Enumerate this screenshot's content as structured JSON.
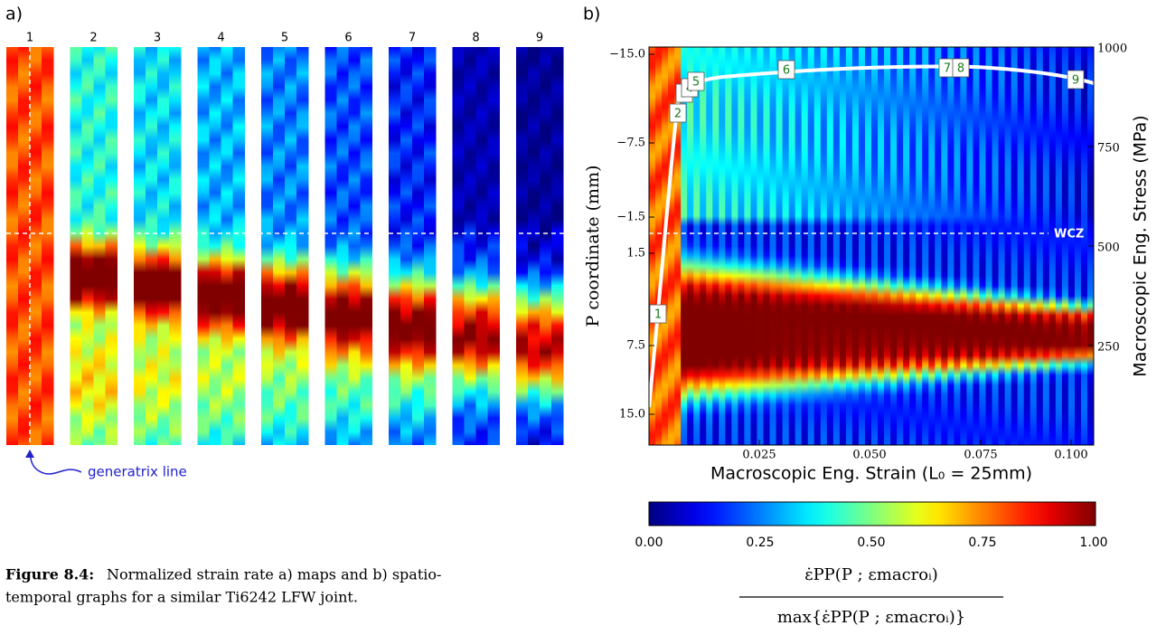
{
  "panel_a": {
    "label": "a)",
    "map_labels": [
      "1",
      "2",
      "3",
      "4",
      "5",
      "6",
      "7",
      "8",
      "9"
    ],
    "annotation": "generatrix line"
  },
  "panel_b": {
    "label": "b)",
    "y_label": "P coordinate (mm)",
    "y2_label": "Macroscopic Eng. Stress (MPa)",
    "x_label": "Macroscopic Eng. Strain (L₀ = 25mm)",
    "y_ticks": [
      "−15.0",
      "−7.5",
      "−1.5",
      "1.5",
      "7.5",
      "15.0"
    ],
    "y2_ticks": [
      "1000",
      "750",
      "500",
      "250"
    ],
    "x_ticks": [
      "0.025",
      "0.050",
      "0.075",
      "0.100"
    ],
    "zone_label": "WCZ",
    "markers": [
      "1",
      "2",
      "3",
      "4",
      "5",
      "6",
      "7",
      "8",
      "9"
    ],
    "colorbar_ticks": [
      "0.00",
      "0.25",
      "0.50",
      "0.75",
      "1.00"
    ],
    "numerator": "ε̇PP(P ; εmacroᵢ)",
    "denominator": "max{ε̇PP(P ; εmacroᵢ)}"
  },
  "caption": {
    "label": "Figure 8.4:",
    "lines": [
      "Normalized strain rate a) maps and b) spatio-",
      "temporal graphs for a similar Ti6242 LFW joint."
    ]
  }
}
